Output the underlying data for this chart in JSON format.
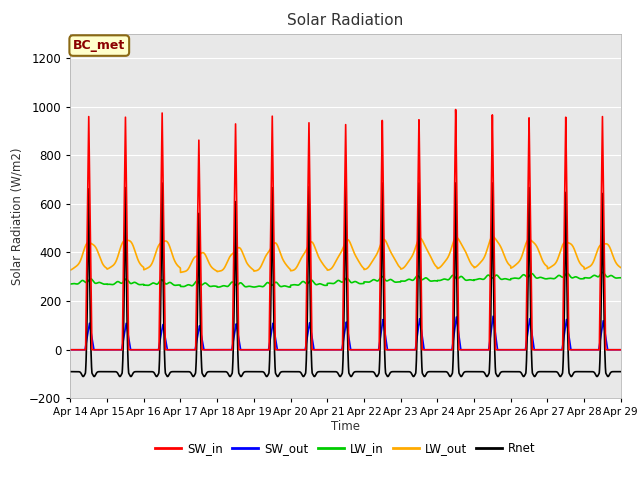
{
  "title": "Solar Radiation",
  "ylabel": "Solar Radiation (W/m2)",
  "xlabel": "Time",
  "ylim": [
    -200,
    1300
  ],
  "yticks": [
    -200,
    0,
    200,
    400,
    600,
    800,
    1000,
    1200
  ],
  "num_days": 15,
  "points_per_day": 288,
  "sw_in_peaks": [
    960,
    960,
    980,
    870,
    940,
    975,
    950,
    945,
    960,
    960,
    1000,
    975,
    960,
    960,
    960
  ],
  "sw_out_peaks": [
    110,
    110,
    105,
    100,
    108,
    110,
    112,
    115,
    125,
    128,
    135,
    138,
    128,
    125,
    120
  ],
  "lw_in_base": [
    270,
    268,
    265,
    260,
    258,
    258,
    265,
    272,
    278,
    282,
    285,
    288,
    292,
    292,
    295
  ],
  "lw_out_night": [
    325,
    328,
    325,
    315,
    318,
    320,
    322,
    325,
    328,
    330,
    332,
    335,
    333,
    330,
    328
  ],
  "lw_out_day_extra": [
    120,
    130,
    128,
    85,
    100,
    115,
    115,
    120,
    118,
    122,
    125,
    128,
    122,
    118,
    115
  ],
  "rnet_peaks": [
    690,
    695,
    715,
    585,
    635,
    695,
    700,
    710,
    715,
    715,
    715,
    715,
    695,
    675,
    670
  ],
  "rnet_night": -90,
  "line_colors": {
    "SW_in": "#ff0000",
    "SW_out": "#0000ff",
    "LW_in": "#00cc00",
    "LW_out": "#ffaa00",
    "Rnet": "#000000"
  },
  "line_widths": {
    "SW_in": 1.2,
    "SW_out": 1.2,
    "LW_in": 1.2,
    "LW_out": 1.2,
    "Rnet": 1.2
  },
  "plot_bg_color": "#e8e8e8",
  "fig_bg_color": "#ffffff",
  "legend_label_color": "#8b0000",
  "annotation_text": "BC_met",
  "annotation_bbox_fc": "#ffffcc",
  "annotation_bbox_ec": "#8b6914",
  "xtick_labels": [
    "Apr 14",
    "Apr 15",
    "Apr 16",
    "Apr 17",
    "Apr 18",
    "Apr 19",
    "Apr 20",
    "Apr 21",
    "Apr 22",
    "Apr 23",
    "Apr 24",
    "Apr 25",
    "Apr 26",
    "Apr 27",
    "Apr 28",
    "Apr 29"
  ]
}
